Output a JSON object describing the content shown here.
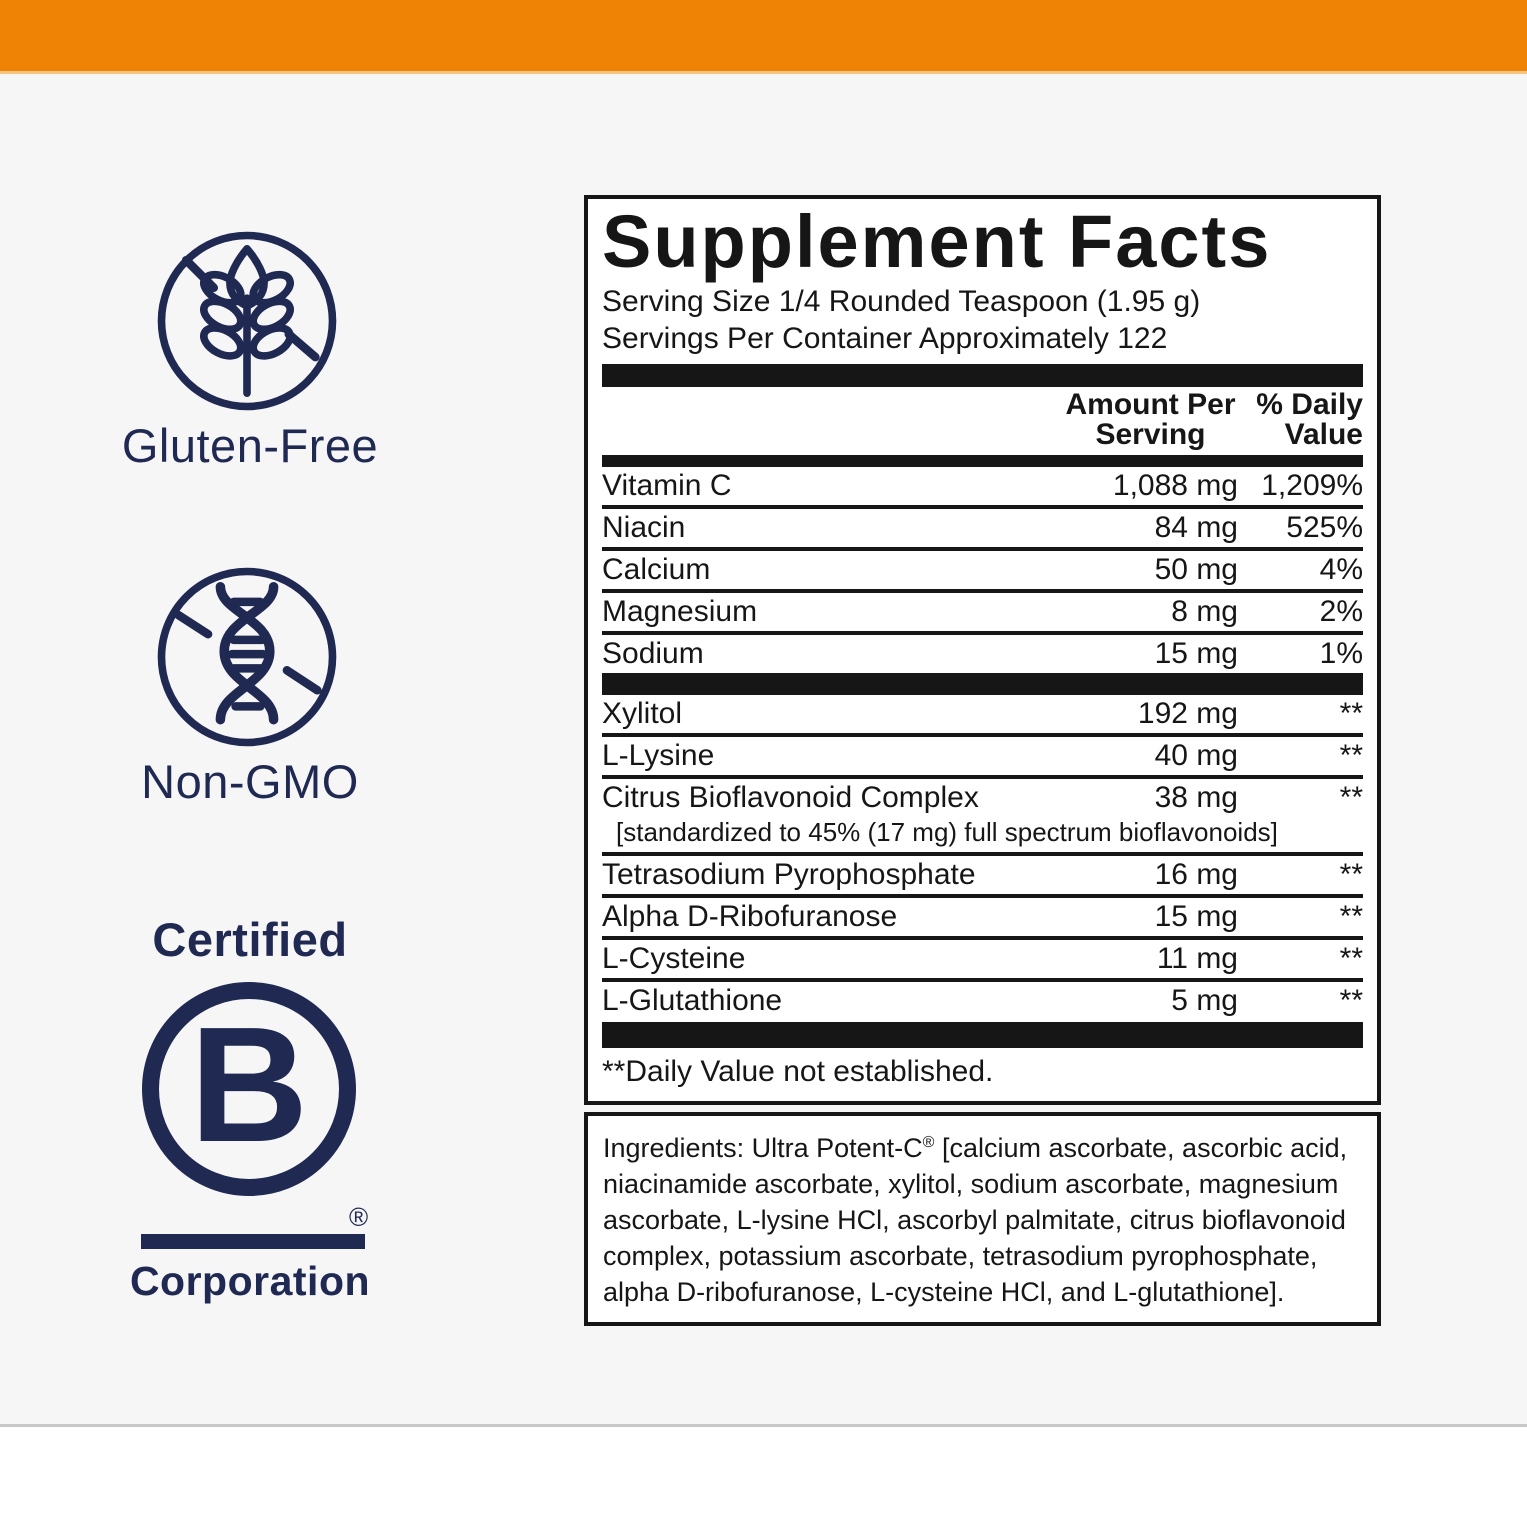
{
  "colors": {
    "accent_orange": "#EE8306",
    "brand_navy": "#1F2951",
    "panel_border_black": "#161616",
    "background_gray": "#F6F6F7"
  },
  "badges": {
    "gluten_free_label": "Gluten-Free",
    "non_gmo_label": "Non-GMO",
    "bcorp_certified": "Certified",
    "bcorp_letter": "B",
    "bcorp_registered": "®",
    "bcorp_corporation": "Corporation",
    "icons": {
      "gluten_free": "wheat-crossed-icon",
      "non_gmo": "dna-crossed-icon",
      "b_corp": "b-in-circle-logo"
    }
  },
  "supplement_facts": {
    "title": "Supplement Facts",
    "serving_size": "Serving Size 1/4 Rounded Teaspoon (1.95 g)",
    "servings_per_container": "Servings Per Container Approximately 122",
    "header": {
      "amount_line1": "Amount Per",
      "amount_line2": "Serving",
      "dv_line1": "% Daily",
      "dv_line2": "Value"
    },
    "main_rows": [
      {
        "name": "Vitamin C",
        "amount": "1,088 mg",
        "dv": "1,209%"
      },
      {
        "name": "Niacin",
        "amount": "84 mg",
        "dv": "525%"
      },
      {
        "name": "Calcium",
        "amount": "50 mg",
        "dv": "4%"
      },
      {
        "name": "Magnesium",
        "amount": "8 mg",
        "dv": "2%"
      },
      {
        "name": "Sodium",
        "amount": "15 mg",
        "dv": "1%"
      }
    ],
    "other_rows": [
      {
        "name": "Xylitol",
        "amount": "192 mg",
        "dv": "**"
      },
      {
        "name": "L-Lysine",
        "amount": "40 mg",
        "dv": "**"
      },
      {
        "name": "Citrus Bioflavonoid Complex",
        "amount": "38 mg",
        "dv": "**",
        "sub": "[standardized to 45% (17 mg) full spectrum bioflavonoids]"
      },
      {
        "name": "Tetrasodium Pyrophosphate",
        "amount": "16 mg",
        "dv": "**"
      },
      {
        "name": "Alpha D-Ribofuranose",
        "amount": "15 mg",
        "dv": "**"
      },
      {
        "name": "L-Cysteine",
        "amount": "11 mg",
        "dv": "**"
      },
      {
        "name": "L-Glutathione",
        "amount": "5 mg",
        "dv": "**"
      }
    ],
    "footnote": "**Daily Value not established."
  },
  "ingredients": {
    "prefix": "Ingredients: Ultra Potent-C",
    "registered": "®",
    "body": " [calcium ascorbate, ascorbic acid, niacinamide ascorbate, xylitol, sodium ascorbate, magnesium ascorbate, L-lysine HCl, ascorbyl palmitate, citrus bioflavonoid complex, potassium ascorbate, tetrasodium pyrophosphate, alpha D-ribofuranose, L-cysteine HCl, and L-glutathione]."
  }
}
